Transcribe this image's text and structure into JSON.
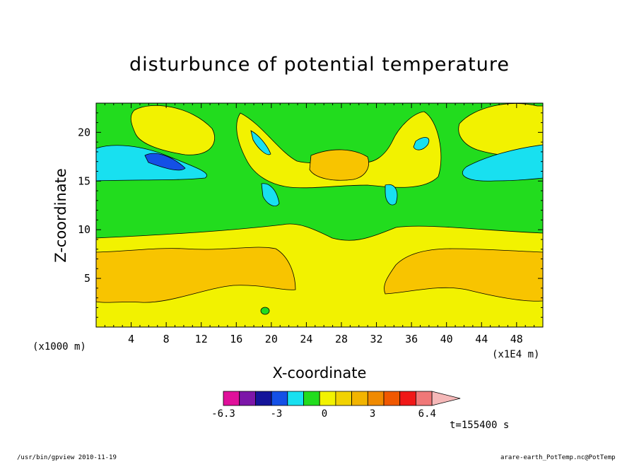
{
  "chart_data": {
    "type": "heatmap",
    "title": "disturbunce of potential temperature",
    "xlabel": "X-coordinate",
    "ylabel": "Z-coordinate",
    "x_unit": "(x1E4 m)",
    "y_unit": "(x1000 m)",
    "xlim": [
      0,
      51
    ],
    "ylim": [
      0,
      23
    ],
    "x_ticks": [
      4,
      8,
      12,
      16,
      20,
      24,
      28,
      32,
      36,
      40,
      44,
      48
    ],
    "y_ticks": [
      5,
      10,
      15,
      20
    ],
    "colorbar": {
      "levels": [
        -6.3,
        -5.3,
        -4.3,
        -3.3,
        -2.3,
        -1.3,
        -0.3,
        0.7,
        1.7,
        2.7,
        3.7,
        4.7,
        5.7
      ],
      "tick_labels": [
        "-6.3",
        "-3",
        "0",
        "3",
        "6.4"
      ],
      "tick_values": [
        -6.3,
        -3,
        0,
        3,
        6.4
      ],
      "colors": [
        "#e0109a",
        "#7c16a8",
        "#14149a",
        "#1450e6",
        "#18e0f0",
        "#22dc1e",
        "#f2f200",
        "#f2d200",
        "#f2b400",
        "#f08a00",
        "#f05800",
        "#f01818",
        "#f07878",
        "#f5b8b8"
      ]
    },
    "colors": {
      "background_field": "#22dc1e",
      "band_low": "#f2f200",
      "band_mid": "#f8c400",
      "positive_blob": "#f2f200",
      "negative_blob": "#18e0f0",
      "strong_negative": "#1450e6"
    }
  },
  "time_label": "t=155400 s",
  "footer": {
    "left": "/usr/bin/gpview  2010-11-19",
    "right": "arare-earth_PotTemp.nc@PotTemp"
  }
}
